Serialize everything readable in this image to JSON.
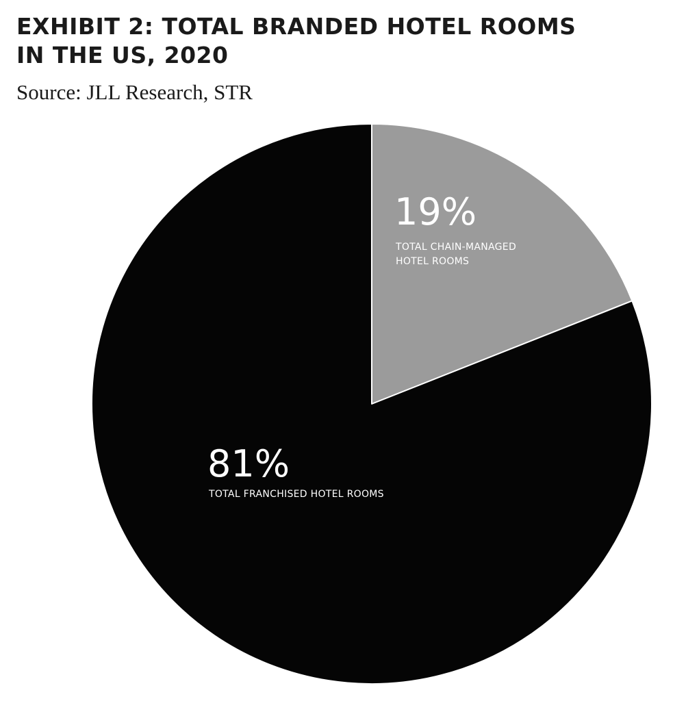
{
  "title_line1": "EXHIBIT 2: TOTAL BRANDED HOTEL ROOMS",
  "title_line2": "IN THE US, 2020",
  "source": "Source: JLL Research, STR",
  "chart_data": {
    "type": "pie",
    "title": "EXHIBIT 2: TOTAL BRANDED HOTEL ROOMS IN THE US, 2020",
    "slices": [
      {
        "value": 19,
        "value_label": "19%",
        "label_lines": [
          "TOTAL CHAIN-MANAGED",
          "HOTEL ROOMS"
        ],
        "color": "#9b9b9b"
      },
      {
        "value": 81,
        "value_label": "81%",
        "label_lines": [
          "TOTAL FRANCHISED HOTEL ROOMS"
        ],
        "color": "#050505"
      }
    ],
    "start_angle": "12 o'clock",
    "direction": "clockwise",
    "slice_border_color": "#ffffff"
  }
}
